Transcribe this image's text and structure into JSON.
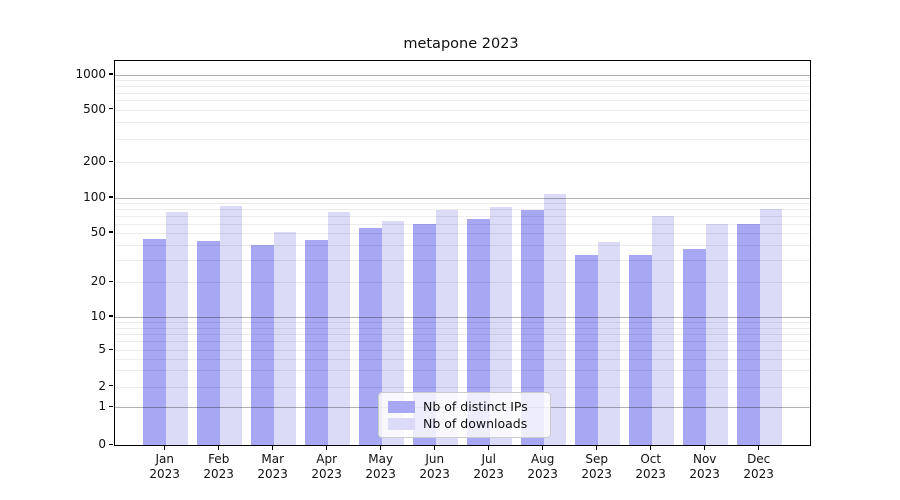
{
  "title": "metapone 2023",
  "legend": {
    "items": [
      {
        "label": "Nb of distinct IPs",
        "color": "#a7a7f3"
      },
      {
        "label": "Nb of downloads",
        "color": "#dbdbf8"
      }
    ]
  },
  "chart_data": {
    "type": "bar",
    "title": "metapone 2023",
    "categories": [
      "Jan 2023",
      "Feb 2023",
      "Mar 2023",
      "Apr 2023",
      "May 2023",
      "Jun 2023",
      "Jul 2023",
      "Aug 2023",
      "Sep 2023",
      "Oct 2023",
      "Nov 2023",
      "Dec 2023"
    ],
    "series": [
      {
        "name": "Nb of distinct IPs",
        "color": "#a7a7f3",
        "values": [
          45,
          43,
          40,
          44,
          55,
          60,
          66,
          78,
          33,
          33,
          37,
          60
        ]
      },
      {
        "name": "Nb of downloads",
        "color": "#dbdbf8",
        "values": [
          76,
          85,
          51,
          76,
          63,
          78,
          84,
          107,
          42,
          70,
          60,
          80
        ]
      }
    ],
    "xlabel": "",
    "ylabel": "",
    "yscale": "symlog",
    "y_ticks": [
      0,
      1,
      2,
      5,
      10,
      20,
      50,
      100,
      200,
      500,
      1000
    ],
    "ylim": [
      0,
      1300
    ],
    "grid": "on",
    "legend_position": "lower center"
  }
}
